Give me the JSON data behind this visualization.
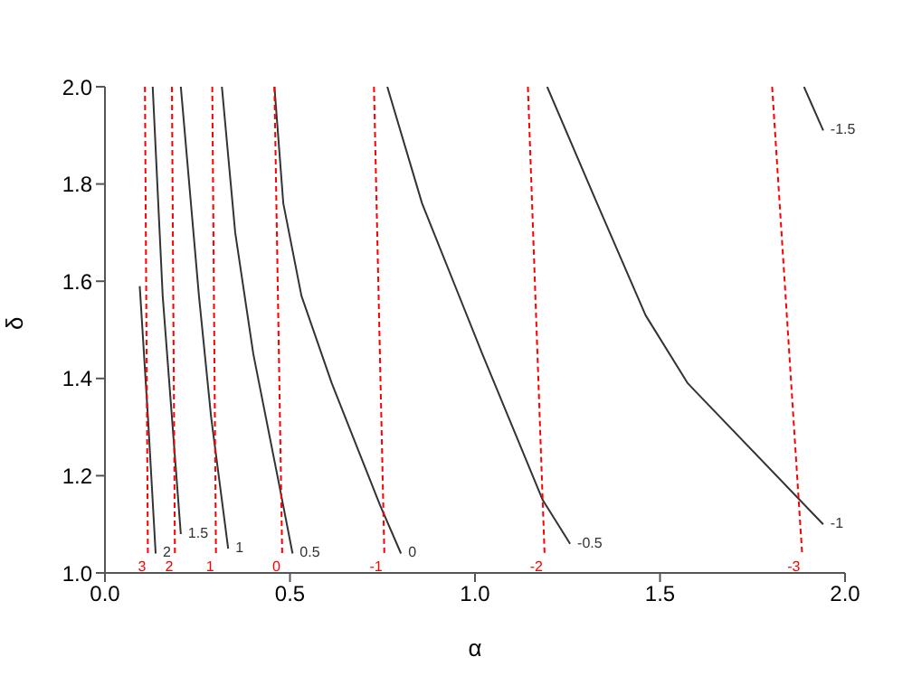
{
  "chart_data": {
    "type": "line",
    "xlabel": "α",
    "ylabel": "δ",
    "xlim": [
      0,
      2
    ],
    "ylim": [
      1,
      2
    ],
    "xticks": [
      {
        "value": 0,
        "label": "0.0"
      },
      {
        "value": 0.5,
        "label": "0.5"
      },
      {
        "value": 1,
        "label": "1.0"
      },
      {
        "value": 1.5,
        "label": "1.5"
      },
      {
        "value": 2,
        "label": "2.0"
      }
    ],
    "yticks": [
      {
        "value": 1,
        "label": "1.0"
      },
      {
        "value": 1.2,
        "label": "1.2"
      },
      {
        "value": 1.4,
        "label": "1.4"
      },
      {
        "value": 1.6,
        "label": "1.6"
      },
      {
        "value": 1.8,
        "label": "1.8"
      },
      {
        "value": 2,
        "label": "2.0"
      }
    ],
    "grid": false,
    "legend": false,
    "marker": "none",
    "series": [
      {
        "name": "2",
        "color": "#333333",
        "line_style": "solid",
        "x": [
          0.094,
          0.117,
          0.137
        ],
        "values": [
          1.59,
          1.31,
          1.04
        ]
      },
      {
        "name": "1.5",
        "color": "#333333",
        "line_style": "solid",
        "x": [
          0.129,
          0.156,
          0.181,
          0.205
        ],
        "values": [
          2.0,
          1.57,
          1.32,
          1.08
        ]
      },
      {
        "name": "1",
        "color": "#333333",
        "line_style": "solid",
        "x": [
          0.205,
          0.254,
          0.287,
          0.333
        ],
        "values": [
          2.0,
          1.57,
          1.32,
          1.05
        ]
      },
      {
        "name": "0.5",
        "color": "#333333",
        "line_style": "solid",
        "x": [
          0.316,
          0.352,
          0.401,
          0.466,
          0.507
        ],
        "values": [
          2.0,
          1.7,
          1.45,
          1.2,
          1.04
        ]
      },
      {
        "name": "0",
        "color": "#333333",
        "line_style": "solid",
        "x": [
          0.458,
          0.482,
          0.531,
          0.613,
          0.743,
          0.8
        ],
        "values": [
          2.0,
          1.76,
          1.57,
          1.39,
          1.14,
          1.04
        ]
      },
      {
        "name": "-0.5",
        "color": "#333333",
        "line_style": "solid",
        "x": [
          0.763,
          0.857,
          1.02,
          1.183,
          1.257
        ],
        "values": [
          2.0,
          1.76,
          1.45,
          1.15,
          1.06
        ]
      },
      {
        "name": "-1",
        "color": "#333333",
        "line_style": "solid",
        "x": [
          1.195,
          1.33,
          1.461,
          1.575,
          1.941
        ],
        "values": [
          2.0,
          1.76,
          1.53,
          1.39,
          1.1
        ]
      },
      {
        "name": "-1.5",
        "color": "#333333",
        "line_style": "solid",
        "x": [
          1.889,
          1.941
        ],
        "values": [
          2.0,
          1.91
        ]
      },
      {
        "name": "3",
        "color": "#ff0000",
        "line_style": "dashed",
        "x": [
          0.108,
          0.116
        ],
        "values": [
          2.0,
          1.04
        ]
      },
      {
        "name": "2",
        "color": "#ff0000",
        "line_style": "dashed",
        "x": [
          0.181,
          0.189
        ],
        "values": [
          2.0,
          1.04
        ]
      },
      {
        "name": "1",
        "color": "#ff0000",
        "line_style": "dashed",
        "x": [
          0.29,
          0.3
        ],
        "values": [
          2.0,
          1.04
        ]
      },
      {
        "name": "0",
        "color": "#ff0000",
        "line_style": "dashed",
        "x": [
          0.458,
          0.479
        ],
        "values": [
          2.0,
          1.04
        ]
      },
      {
        "name": "-1",
        "color": "#ff0000",
        "line_style": "dashed",
        "x": [
          0.727,
          0.755
        ],
        "values": [
          2.0,
          1.04
        ]
      },
      {
        "name": "-2",
        "color": "#ff0000",
        "line_style": "dashed",
        "x": [
          1.143,
          1.188
        ],
        "values": [
          2.0,
          1.04
        ]
      },
      {
        "name": "-3",
        "color": "#ff0000",
        "line_style": "dashed",
        "x": [
          1.803,
          1.884
        ],
        "values": [
          2.0,
          1.04
        ]
      }
    ]
  }
}
